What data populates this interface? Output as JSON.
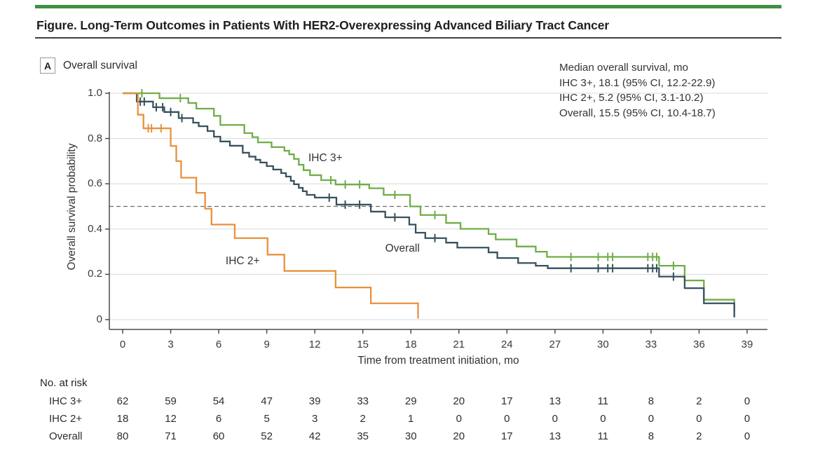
{
  "header": {
    "title": "Figure. Long-Term Outcomes in Patients With HER2-Overexpressing Advanced Biliary Tract Cancer",
    "accent_color": "#3e9142"
  },
  "panel": {
    "letter": "A",
    "title": "Overall survival"
  },
  "legend": {
    "lines": [
      "Median overall survival, mo",
      "IHC 3+, 18.1 (95% CI, 12.2-22.9)",
      "IHC 2+, 5.2 (95% CI, 3.1-10.2)",
      "Overall, 15.5 (95% CI, 10.4-18.7)"
    ]
  },
  "chart_data": {
    "type": "line",
    "subtype": "kaplan-meier-step",
    "title": "Overall survival",
    "xlabel": "Time from treatment initiation, mo",
    "ylabel": "Overall survival probability",
    "xlim": [
      0,
      39
    ],
    "xticks": [
      0,
      3,
      6,
      9,
      12,
      15,
      18,
      21,
      24,
      27,
      30,
      33,
      36,
      39
    ],
    "ylim": [
      0,
      1
    ],
    "yticks": [
      1.0,
      0.8,
      0.6,
      0.4,
      0.2,
      0
    ],
    "ytick_labels": [
      "1.0",
      "0.8",
      "0.6",
      "0.4",
      "0.2",
      "0"
    ],
    "grid": true,
    "median_guide_y": 0.5,
    "colors": {
      "grid": "#d8d8d8",
      "median_dash": "#6e6e6e",
      "axis": "#4d4d4d"
    },
    "series": [
      {
        "name": "IHC 3+",
        "color": "#6fad47",
        "label_text": "IHC 3+",
        "label_pos": [
          11.6,
          0.74
        ],
        "start": [
          0,
          1.0
        ],
        "end": 38.2,
        "drops": [
          [
            2.3,
            0.978
          ],
          [
            4.1,
            0.957
          ],
          [
            4.6,
            0.932
          ],
          [
            5.7,
            0.9
          ],
          [
            6.1,
            0.86
          ],
          [
            7.6,
            0.824
          ],
          [
            8.1,
            0.806
          ],
          [
            8.45,
            0.783
          ],
          [
            9.3,
            0.762
          ],
          [
            10.1,
            0.746
          ],
          [
            10.4,
            0.73
          ],
          [
            10.7,
            0.71
          ],
          [
            11.0,
            0.684
          ],
          [
            11.3,
            0.66
          ],
          [
            11.7,
            0.638
          ],
          [
            12.4,
            0.616
          ],
          [
            13.3,
            0.597
          ],
          [
            15.4,
            0.58
          ],
          [
            16.3,
            0.551
          ],
          [
            17.95,
            0.5
          ],
          [
            18.6,
            0.462
          ],
          [
            20.2,
            0.427
          ],
          [
            21.1,
            0.401
          ],
          [
            22.85,
            0.378
          ],
          [
            23.3,
            0.354
          ],
          [
            24.6,
            0.323
          ],
          [
            25.8,
            0.3
          ],
          [
            26.5,
            0.277
          ],
          [
            33.5,
            0.238
          ],
          [
            35.1,
            0.173
          ],
          [
            36.3,
            0.088
          ],
          [
            38.2,
            0.03
          ]
        ],
        "censor_times": [
          1.2,
          3.6,
          13.0,
          13.9,
          14.8,
          17.0,
          19.5,
          28.0,
          29.7,
          30.3,
          30.6,
          32.8,
          33.1,
          33.35,
          34.4
        ]
      },
      {
        "name": "Overall",
        "color": "#37515d",
        "label_text": "Overall",
        "label_pos": [
          16.4,
          0.34
        ],
        "start": [
          0,
          1.0
        ],
        "end": 38.2,
        "drops": [
          [
            0.88,
            0.963
          ],
          [
            1.9,
            0.938
          ],
          [
            2.6,
            0.917
          ],
          [
            3.5,
            0.89
          ],
          [
            4.4,
            0.87
          ],
          [
            4.75,
            0.854
          ],
          [
            5.3,
            0.833
          ],
          [
            5.7,
            0.808
          ],
          [
            6.1,
            0.787
          ],
          [
            6.7,
            0.768
          ],
          [
            7.5,
            0.737
          ],
          [
            7.9,
            0.72
          ],
          [
            8.3,
            0.706
          ],
          [
            8.6,
            0.694
          ],
          [
            9.0,
            0.678
          ],
          [
            9.4,
            0.663
          ],
          [
            9.9,
            0.647
          ],
          [
            10.2,
            0.632
          ],
          [
            10.5,
            0.613
          ],
          [
            10.7,
            0.598
          ],
          [
            11.0,
            0.582
          ],
          [
            11.25,
            0.567
          ],
          [
            11.5,
            0.551
          ],
          [
            12.0,
            0.539
          ],
          [
            13.35,
            0.508
          ],
          [
            15.5,
            0.477
          ],
          [
            16.4,
            0.452
          ],
          [
            17.9,
            0.42
          ],
          [
            18.3,
            0.384
          ],
          [
            18.9,
            0.36
          ],
          [
            20.2,
            0.34
          ],
          [
            20.9,
            0.318
          ],
          [
            22.85,
            0.297
          ],
          [
            23.4,
            0.272
          ],
          [
            24.7,
            0.25
          ],
          [
            25.8,
            0.238
          ],
          [
            26.55,
            0.227
          ],
          [
            33.5,
            0.19
          ],
          [
            35.1,
            0.139
          ],
          [
            36.3,
            0.072
          ],
          [
            38.2,
            0.01
          ]
        ],
        "censor_times": [
          1.1,
          1.35,
          2.1,
          2.5,
          3.0,
          3.7,
          12.9,
          13.9,
          14.8,
          17.0,
          19.5,
          28.0,
          29.7,
          30.3,
          30.6,
          32.8,
          33.1,
          33.35,
          34.4
        ]
      },
      {
        "name": "IHC 2+",
        "color": "#e8913c",
        "label_text": "IHC 2+",
        "label_pos": [
          6.43,
          0.285
        ],
        "start": [
          0,
          1.0
        ],
        "end": 18.45,
        "drops": [
          [
            0.95,
            0.905
          ],
          [
            1.3,
            0.845
          ],
          [
            3.0,
            0.767
          ],
          [
            3.35,
            0.7
          ],
          [
            3.65,
            0.627
          ],
          [
            4.6,
            0.56
          ],
          [
            5.15,
            0.49
          ],
          [
            5.55,
            0.42
          ],
          [
            7.0,
            0.36
          ],
          [
            9.05,
            0.287
          ],
          [
            10.1,
            0.215
          ],
          [
            13.3,
            0.142
          ],
          [
            15.5,
            0.072
          ],
          [
            18.45,
            0.005
          ]
        ],
        "censor_times": [
          1.6,
          1.8,
          2.4
        ]
      }
    ]
  },
  "risk_table": {
    "title": "No. at risk",
    "months": [
      0,
      3,
      6,
      9,
      12,
      15,
      18,
      21,
      24,
      27,
      30,
      33,
      36,
      39
    ],
    "rows": [
      {
        "label": "IHC 3+",
        "values": [
          62,
          59,
          54,
          47,
          39,
          33,
          29,
          20,
          17,
          13,
          11,
          8,
          2,
          0
        ]
      },
      {
        "label": "IHC 2+",
        "values": [
          18,
          12,
          6,
          5,
          3,
          2,
          1,
          0,
          0,
          0,
          0,
          0,
          0,
          0
        ]
      },
      {
        "label": "Overall",
        "values": [
          80,
          71,
          60,
          52,
          42,
          35,
          30,
          20,
          17,
          13,
          11,
          8,
          2,
          0
        ]
      }
    ]
  }
}
